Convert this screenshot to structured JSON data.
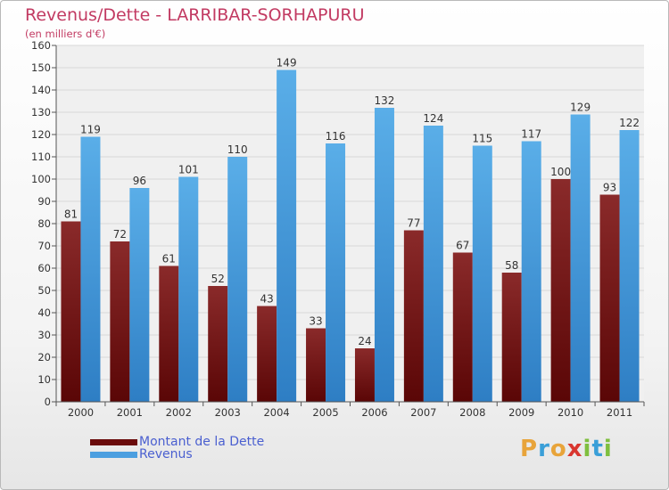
{
  "chart_data": {
    "type": "bar",
    "title": "Revenus/Dette - LARRIBAR-SORHAPURU",
    "subtitle": "(en milliers d'€)",
    "categories": [
      "2000",
      "2001",
      "2002",
      "2003",
      "2004",
      "2005",
      "2006",
      "2007",
      "2008",
      "2009",
      "2010",
      "2011"
    ],
    "series": [
      {
        "name": "Montant de la Dette",
        "color": "#7a1111",
        "values": [
          81,
          72,
          61,
          52,
          43,
          33,
          24,
          77,
          67,
          58,
          100,
          93
        ]
      },
      {
        "name": "Revenus",
        "color": "#4c9fe0",
        "values": [
          119,
          96,
          101,
          110,
          149,
          116,
          132,
          124,
          115,
          117,
          129,
          122
        ]
      }
    ],
    "ylim": [
      0,
      160
    ],
    "yticks": [
      0,
      10,
      20,
      30,
      40,
      50,
      60,
      70,
      80,
      90,
      100,
      110,
      120,
      130,
      140,
      150,
      160
    ],
    "grid": true,
    "legend_position": "bottom-left"
  },
  "logo": {
    "letters": [
      "P",
      "r",
      "o",
      "x",
      "i",
      "t",
      "i"
    ],
    "colors": [
      "#e8a43a",
      "#3a9fd8",
      "#e8a43a",
      "#d9362f",
      "#7fbf3f",
      "#3a9fd8",
      "#7fbf3f"
    ]
  }
}
